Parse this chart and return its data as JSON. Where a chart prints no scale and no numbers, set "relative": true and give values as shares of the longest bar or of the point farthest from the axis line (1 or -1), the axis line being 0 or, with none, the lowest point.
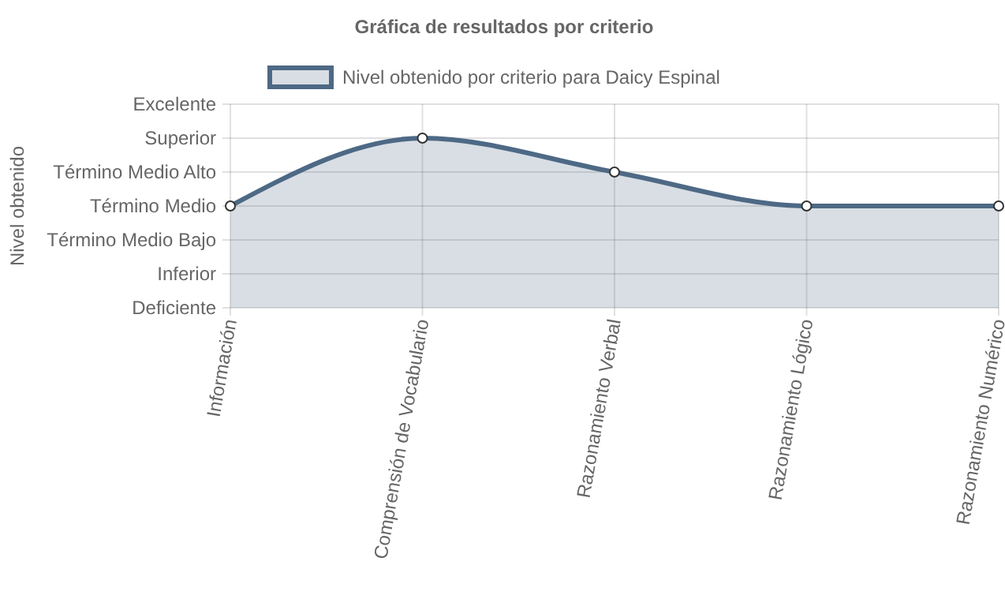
{
  "chart_data": {
    "type": "area",
    "title": "Gráfica de resultados por criterio",
    "annotations": [
      "Nivel obtenido"
    ],
    "categories": [
      "Información",
      "Comprensión de Vocabulario",
      "Razonamiento Verbal",
      "Razonamiento Lógico",
      "Razonamiento Numérico"
    ],
    "series": [
      {
        "name": "Nivel obtenido por criterio para Daicy Espinal",
        "color": "#4d6985",
        "values": [
          0.6,
          1,
          0.8,
          0.6,
          0.6
        ]
      }
    ],
    "relative": true,
    "y_categories": [
      "Excelente",
      "Superior",
      "Término Medio Alto",
      "Término Medio",
      "Término Medio Bajo",
      "Inferior",
      "Deficiente"
    ],
    "grid": true,
    "legend": "top",
    "marker": "circle"
  }
}
